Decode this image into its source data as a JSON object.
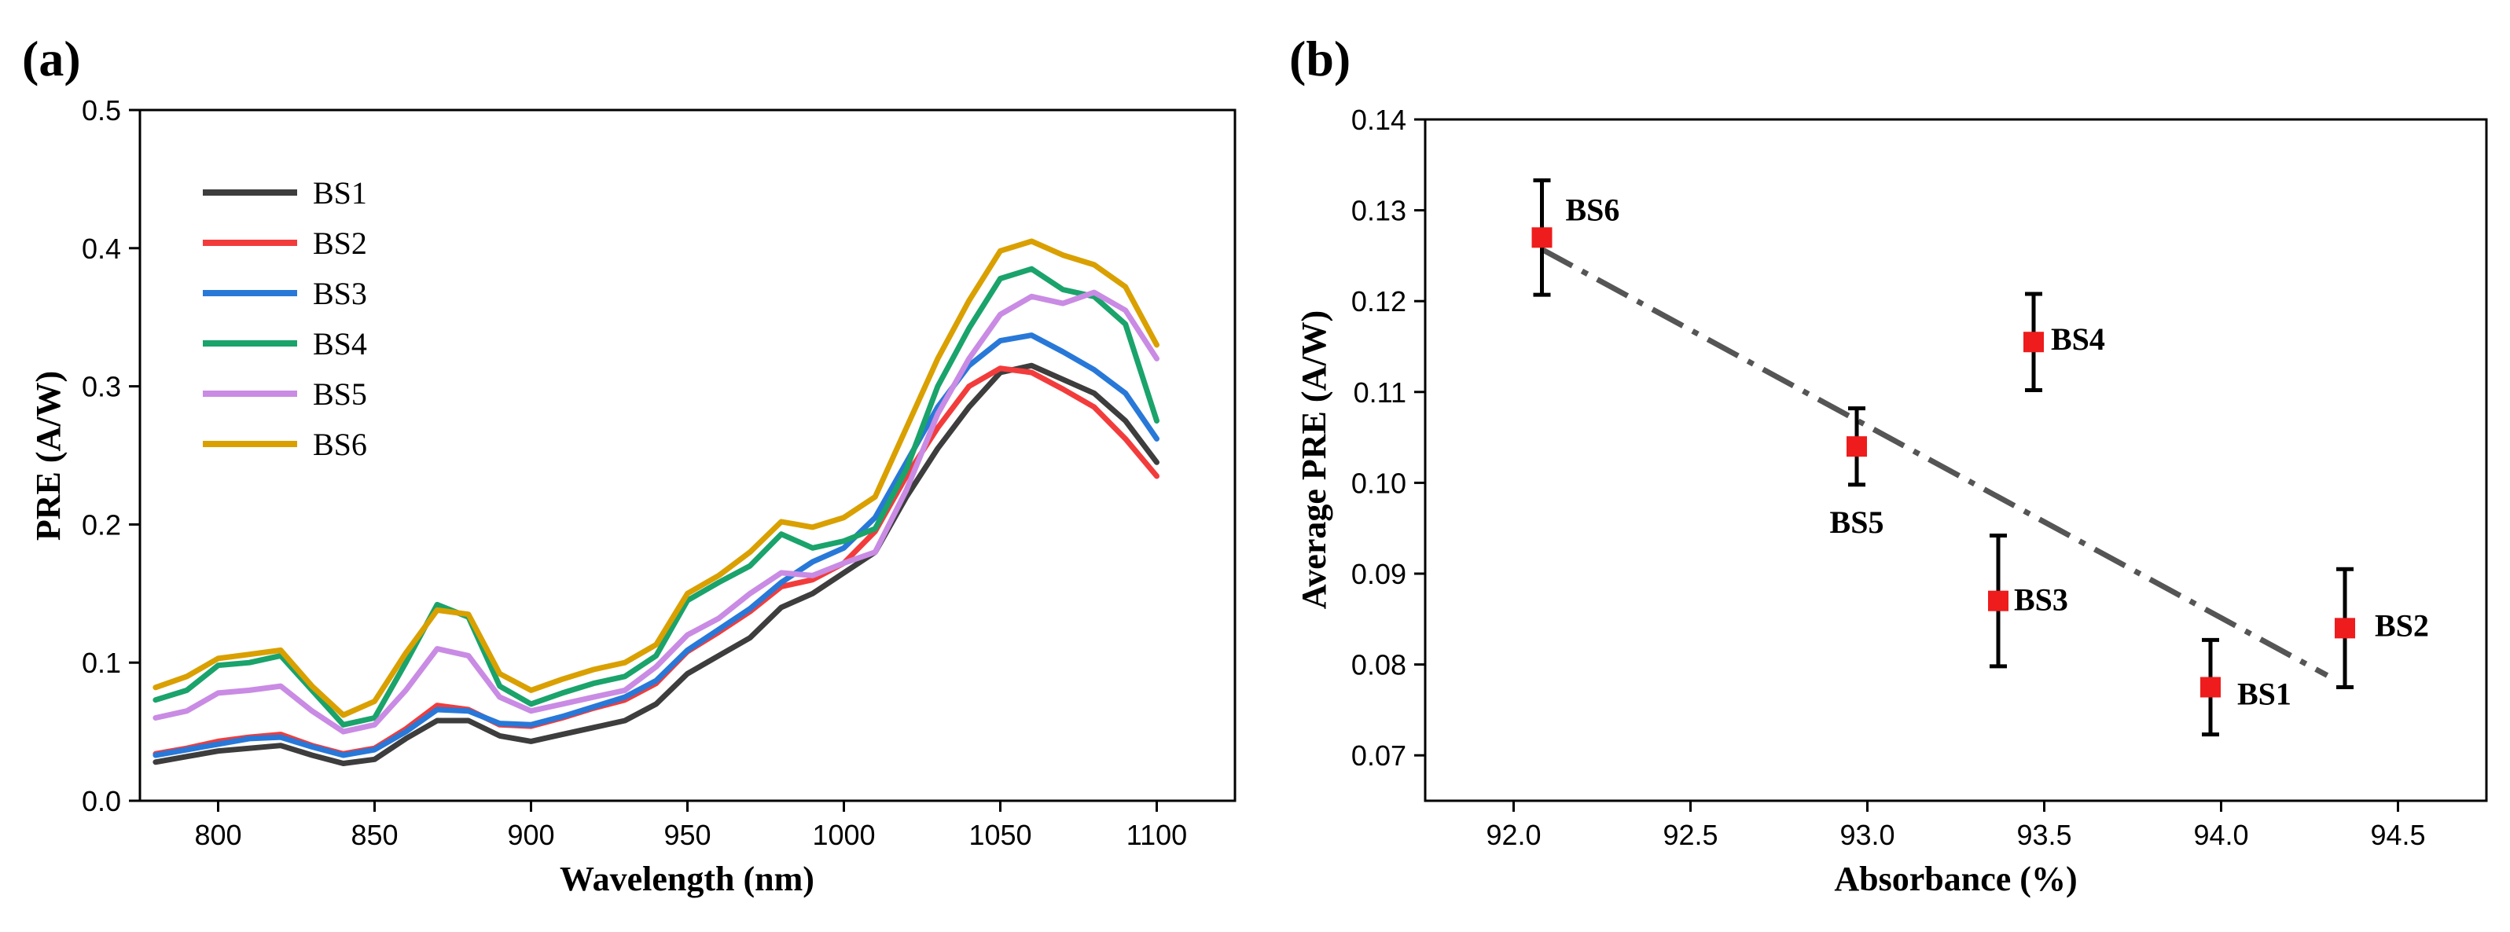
{
  "chart_data": [
    {
      "panel": "(a)",
      "type": "line",
      "title": "",
      "xlabel": "Wavelength (nm)",
      "ylabel": "PRE (A/W)",
      "xlim": [
        775,
        1125
      ],
      "ylim": [
        0.0,
        0.5
      ],
      "xticks": [
        800,
        850,
        900,
        950,
        1000,
        1050,
        1100
      ],
      "yticks": [
        0.0,
        0.1,
        0.2,
        0.3,
        0.4,
        0.5
      ],
      "x": [
        780,
        790,
        800,
        810,
        820,
        830,
        840,
        850,
        860,
        870,
        880,
        890,
        900,
        910,
        920,
        930,
        940,
        950,
        960,
        970,
        980,
        990,
        1000,
        1010,
        1020,
        1030,
        1040,
        1050,
        1060,
        1070,
        1080,
        1090,
        1100
      ],
      "legend": "top-left",
      "series": [
        {
          "name": "BS1",
          "color": "#3d3d3d",
          "values": [
            0.028,
            0.032,
            0.036,
            0.038,
            0.04,
            0.033,
            0.027,
            0.03,
            0.045,
            0.058,
            0.058,
            0.047,
            0.043,
            0.048,
            0.053,
            0.058,
            0.07,
            0.092,
            0.105,
            0.118,
            0.14,
            0.15,
            0.165,
            0.18,
            0.22,
            0.255,
            0.285,
            0.31,
            0.315,
            0.305,
            0.295,
            0.275,
            0.245
          ]
        },
        {
          "name": "BS2",
          "color": "#f23c3c",
          "values": [
            0.034,
            0.038,
            0.043,
            0.046,
            0.048,
            0.04,
            0.034,
            0.038,
            0.052,
            0.069,
            0.066,
            0.055,
            0.054,
            0.06,
            0.067,
            0.073,
            0.085,
            0.108,
            0.122,
            0.137,
            0.155,
            0.16,
            0.172,
            0.195,
            0.235,
            0.27,
            0.3,
            0.313,
            0.31,
            0.298,
            0.285,
            0.262,
            0.235
          ]
        },
        {
          "name": "BS3",
          "color": "#2878d8",
          "values": [
            0.033,
            0.037,
            0.041,
            0.045,
            0.046,
            0.039,
            0.033,
            0.037,
            0.05,
            0.066,
            0.065,
            0.056,
            0.055,
            0.061,
            0.068,
            0.075,
            0.087,
            0.109,
            0.124,
            0.139,
            0.158,
            0.173,
            0.183,
            0.205,
            0.245,
            0.285,
            0.315,
            0.333,
            0.337,
            0.325,
            0.312,
            0.295,
            0.262
          ]
        },
        {
          "name": "BS4",
          "color": "#1aa36b",
          "values": [
            0.073,
            0.08,
            0.098,
            0.1,
            0.105,
            0.08,
            0.055,
            0.06,
            0.1,
            0.142,
            0.133,
            0.083,
            0.07,
            0.078,
            0.085,
            0.09,
            0.105,
            0.145,
            0.158,
            0.17,
            0.193,
            0.183,
            0.188,
            0.197,
            0.24,
            0.3,
            0.342,
            0.378,
            0.385,
            0.37,
            0.365,
            0.345,
            0.275
          ]
        },
        {
          "name": "BS5",
          "color": "#c98be4",
          "values": [
            0.06,
            0.065,
            0.078,
            0.08,
            0.083,
            0.065,
            0.05,
            0.055,
            0.08,
            0.11,
            0.105,
            0.075,
            0.065,
            0.07,
            0.075,
            0.08,
            0.097,
            0.12,
            0.132,
            0.15,
            0.165,
            0.163,
            0.172,
            0.18,
            0.225,
            0.28,
            0.32,
            0.352,
            0.365,
            0.36,
            0.368,
            0.355,
            0.32
          ]
        },
        {
          "name": "BS6",
          "color": "#d9a000",
          "values": [
            0.082,
            0.09,
            0.103,
            0.106,
            0.109,
            0.083,
            0.062,
            0.072,
            0.107,
            0.138,
            0.135,
            0.092,
            0.08,
            0.088,
            0.095,
            0.1,
            0.113,
            0.15,
            0.163,
            0.18,
            0.202,
            0.198,
            0.205,
            0.22,
            0.27,
            0.32,
            0.362,
            0.398,
            0.405,
            0.395,
            0.388,
            0.372,
            0.33
          ]
        }
      ]
    },
    {
      "panel": "(b)",
      "type": "scatter",
      "title": "",
      "xlabel": "Absorbance (%)",
      "ylabel": "Average PRE (A/W)",
      "xlim": [
        91.75,
        94.75
      ],
      "ylim": [
        0.065,
        0.14
      ],
      "xticks": [
        92.0,
        92.5,
        93.0,
        93.5,
        94.0,
        94.5
      ],
      "xtick_labels": [
        "92.0",
        "92.5",
        "93.0",
        "93.5",
        "94.0",
        "94.5"
      ],
      "yticks": [
        0.07,
        0.08,
        0.09,
        0.1,
        0.11,
        0.12,
        0.13,
        0.14
      ],
      "ytick_labels": [
        "0.07",
        "0.08",
        "0.09",
        "0.10",
        "0.11",
        "0.12",
        "0.13",
        "0.14"
      ],
      "marker_color": "#ee1c1c",
      "fit_line_color": "#555555",
      "points": [
        {
          "name": "BS1",
          "x": 93.97,
          "y": 0.0775,
          "err": 0.0052
        },
        {
          "name": "BS2",
          "x": 94.35,
          "y": 0.084,
          "err": 0.0065
        },
        {
          "name": "BS3",
          "x": 93.37,
          "y": 0.087,
          "err": 0.0072
        },
        {
          "name": "BS4",
          "x": 93.47,
          "y": 0.1155,
          "err": 0.0053
        },
        {
          "name": "BS5",
          "x": 92.97,
          "y": 0.104,
          "err": 0.0042
        },
        {
          "name": "BS6",
          "x": 92.08,
          "y": 0.127,
          "err": 0.0063
        }
      ],
      "fit_line": {
        "x": [
          92.08,
          94.3
        ],
        "y": [
          0.1257,
          0.0788
        ]
      }
    }
  ]
}
